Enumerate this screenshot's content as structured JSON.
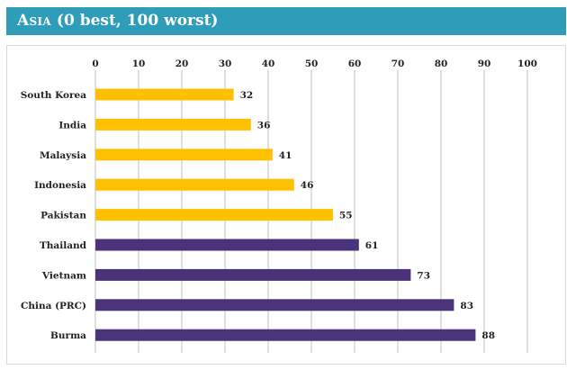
{
  "chart_data": {
    "type": "bar",
    "orientation": "horizontal",
    "title_prefix": "Asia",
    "title_rest": "(0 best, 100 worst)",
    "categories": [
      "South Korea",
      "India",
      "Malaysia",
      "Indonesia",
      "Pakistan",
      "Thailand",
      "Vietnam",
      "China (PRC)",
      "Burma"
    ],
    "values": [
      32,
      36,
      41,
      46,
      55,
      61,
      73,
      83,
      88
    ],
    "bar_colors": [
      "#ffc000",
      "#ffc000",
      "#ffc000",
      "#ffc000",
      "#ffc000",
      "#4a3378",
      "#4a3378",
      "#4a3378",
      "#4a3378"
    ],
    "xlim": [
      0,
      100
    ],
    "ticks": [
      0,
      10,
      20,
      30,
      40,
      50,
      60,
      70,
      80,
      90,
      100
    ],
    "axis_position": "top",
    "grid": true,
    "legend": "none",
    "data_labels": true
  },
  "colors": {
    "header": "#2f9cba",
    "grid": "#bfbfbf"
  }
}
